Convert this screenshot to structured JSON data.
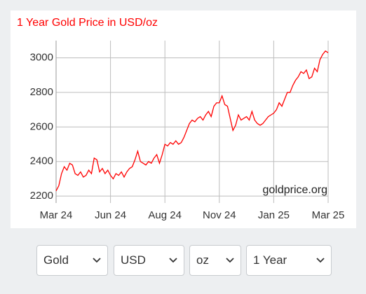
{
  "chart_data": {
    "type": "line",
    "title": "1 Year Gold Price in USD/oz",
    "annotation": "goldprice.org",
    "categories": [
      "Mar 24",
      null,
      null,
      null,
      null,
      null,
      null,
      null,
      null,
      null,
      null,
      null,
      null,
      null,
      null,
      null,
      null,
      null,
      null,
      null,
      "Jun 24",
      null,
      null,
      null,
      null,
      null,
      null,
      null,
      null,
      null,
      null,
      null,
      null,
      null,
      null,
      null,
      null,
      null,
      null,
      null,
      "Aug 24",
      null,
      null,
      null,
      null,
      null,
      null,
      null,
      null,
      null,
      null,
      null,
      null,
      null,
      null,
      null,
      null,
      null,
      null,
      null,
      "Nov 24",
      null,
      null,
      null,
      null,
      null,
      null,
      null,
      null,
      null,
      null,
      null,
      null,
      null,
      null,
      null,
      null,
      null,
      null,
      null,
      "Jan 25",
      null,
      null,
      null,
      null,
      null,
      null,
      null,
      null,
      null,
      null,
      null,
      null,
      null,
      null,
      null,
      null,
      null,
      null,
      null,
      "Mar 25"
    ],
    "values": [
      2230,
      2260,
      2330,
      2370,
      2350,
      2390,
      2380,
      2330,
      2320,
      2340,
      2310,
      2320,
      2350,
      2330,
      2420,
      2410,
      2340,
      2360,
      2330,
      2350,
      2320,
      2300,
      2330,
      2320,
      2340,
      2310,
      2340,
      2360,
      2370,
      2410,
      2460,
      2400,
      2390,
      2380,
      2400,
      2390,
      2420,
      2440,
      2390,
      2440,
      2500,
      2490,
      2510,
      2500,
      2520,
      2500,
      2510,
      2540,
      2580,
      2620,
      2640,
      2630,
      2650,
      2660,
      2640,
      2670,
      2690,
      2660,
      2720,
      2740,
      2740,
      2780,
      2730,
      2720,
      2650,
      2580,
      2610,
      2670,
      2640,
      2650,
      2660,
      2640,
      2690,
      2640,
      2620,
      2610,
      2620,
      2640,
      2660,
      2670,
      2680,
      2700,
      2740,
      2720,
      2760,
      2800,
      2800,
      2840,
      2870,
      2890,
      2920,
      2910,
      2930,
      2880,
      2890,
      2940,
      2920,
      2990,
      3020,
      3040,
      3030
    ],
    "color": "#ff0000",
    "ylim": [
      2160,
      3100
    ],
    "yticks": [
      2200,
      2400,
      2600,
      2800,
      3000
    ],
    "grid": true
  },
  "controls": [
    "Gold",
    "USD",
    "oz",
    "1 Year"
  ]
}
